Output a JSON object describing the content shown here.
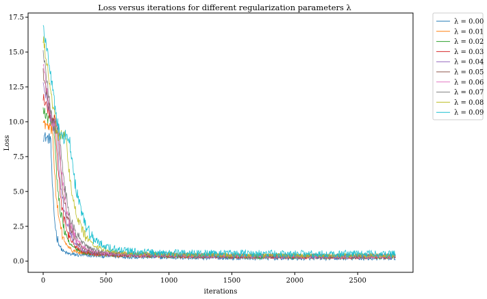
{
  "chart_data": {
    "type": "line",
    "title": "Loss versus iterations for different regularization parameters λ",
    "xlabel": "iterations",
    "ylabel": "Loss",
    "xlim": [
      -120,
      2940
    ],
    "ylim": [
      -0.8,
      17.8
    ],
    "xticks": [
      0,
      500,
      1000,
      1500,
      2000,
      2500
    ],
    "yticks": [
      0.0,
      2.5,
      5.0,
      7.5,
      10.0,
      12.5,
      15.0,
      17.5
    ],
    "xtick_labels": [
      "0",
      "500",
      "1000",
      "1500",
      "2000",
      "2500"
    ],
    "ytick_labels": [
      "0.0",
      "2.5",
      "5.0",
      "7.5",
      "10.0",
      "12.5",
      "15.0",
      "17.5"
    ],
    "grid": false,
    "legend_position": "outside-top-right",
    "x_max": 2800,
    "series": [
      {
        "name": "λ = 0.00",
        "color": "#1f77b4",
        "start": 9.0,
        "plateau": 8.8,
        "drop_at": 60,
        "drop_width": 30,
        "floor": 0.2,
        "noise": 0.15
      },
      {
        "name": "λ = 0.01",
        "color": "#ff7f0e",
        "start": 10.0,
        "plateau": 9.5,
        "drop_at": 75,
        "drop_width": 45,
        "floor": 0.3,
        "noise": 0.15
      },
      {
        "name": "λ = 0.02",
        "color": "#2ca02c",
        "start": 10.8,
        "plateau": 10.0,
        "drop_at": 85,
        "drop_width": 55,
        "floor": 0.3,
        "noise": 0.15
      },
      {
        "name": "λ = 0.03",
        "color": "#d62728",
        "start": 11.8,
        "plateau": 10.2,
        "drop_at": 95,
        "drop_width": 60,
        "floor": 0.3,
        "noise": 0.15
      },
      {
        "name": "λ = 0.04",
        "color": "#9467bd",
        "start": 12.8,
        "plateau": 10.0,
        "drop_at": 105,
        "drop_width": 65,
        "floor": 0.3,
        "noise": 0.15
      },
      {
        "name": "λ = 0.05",
        "color": "#8c564b",
        "start": 13.5,
        "plateau": 9.8,
        "drop_at": 115,
        "drop_width": 70,
        "floor": 0.35,
        "noise": 0.15
      },
      {
        "name": "λ = 0.06",
        "color": "#e377c2",
        "start": 14.2,
        "plateau": 9.6,
        "drop_at": 120,
        "drop_width": 75,
        "floor": 0.35,
        "noise": 0.15
      },
      {
        "name": "λ = 0.07",
        "color": "#7f7f7f",
        "start": 15.0,
        "plateau": 9.4,
        "drop_at": 130,
        "drop_width": 80,
        "floor": 0.4,
        "noise": 0.15
      },
      {
        "name": "λ = 0.08",
        "color": "#bcbd22",
        "start": 16.0,
        "plateau": 9.0,
        "drop_at": 180,
        "drop_width": 90,
        "floor": 0.4,
        "noise": 0.15
      },
      {
        "name": "λ = 0.09",
        "color": "#17becf",
        "start": 17.0,
        "plateau": 8.9,
        "drop_at": 210,
        "drop_width": 100,
        "floor": 0.5,
        "noise": 0.15
      }
    ]
  }
}
